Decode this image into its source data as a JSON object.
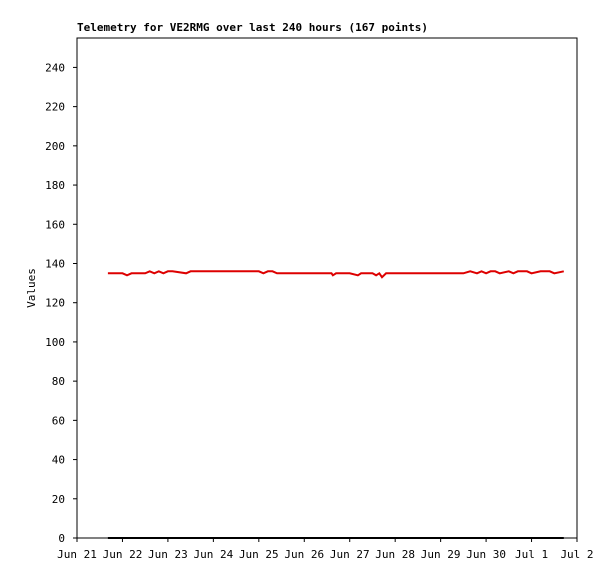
{
  "chart_data": {
    "type": "line",
    "title": "Telemetry for VE2RMG over last 240 hours (167 points)",
    "y_label": "Values",
    "xlim": [
      0,
      11
    ],
    "xticks": [
      {
        "value": 0,
        "label": "Jun 21"
      },
      {
        "value": 1,
        "label": "Jun 22"
      },
      {
        "value": 2,
        "label": "Jun 23"
      },
      {
        "value": 3,
        "label": "Jun 24"
      },
      {
        "value": 4,
        "label": "Jun 25"
      },
      {
        "value": 5,
        "label": "Jun 26"
      },
      {
        "value": 6,
        "label": "Jun 27"
      },
      {
        "value": 7,
        "label": "Jun 28"
      },
      {
        "value": 8,
        "label": "Jun 29"
      },
      {
        "value": 9,
        "label": "Jun 30"
      },
      {
        "value": 10,
        "label": "Jul 1"
      },
      {
        "value": 11,
        "label": "Jul 2"
      }
    ],
    "ylim": [
      0,
      255
    ],
    "yticks": [
      0,
      20,
      40,
      60,
      80,
      100,
      120,
      140,
      160,
      180,
      200,
      220,
      240
    ],
    "series": [
      {
        "color": "#dd0000",
        "x": [
          0.68,
          1.0,
          1.1,
          1.2,
          1.5,
          1.6,
          1.7,
          1.8,
          1.9,
          2.0,
          2.1,
          2.4,
          2.5,
          3.0,
          4.0,
          4.1,
          4.2,
          4.3,
          4.4,
          5.0,
          5.6,
          5.63,
          5.7,
          6.0,
          6.18,
          6.25,
          6.5,
          6.58,
          6.65,
          6.71,
          6.8,
          7.0,
          7.5,
          8.5,
          8.65,
          8.8,
          8.9,
          9.0,
          9.1,
          9.2,
          9.3,
          9.5,
          9.6,
          9.7,
          9.9,
          10.0,
          10.2,
          10.4,
          10.5,
          10.71
        ],
        "values": [
          135,
          135,
          134,
          135,
          135,
          136,
          135,
          136,
          135,
          136,
          136,
          135,
          136,
          136,
          136,
          135,
          136,
          136,
          135,
          135,
          135,
          134,
          135,
          135,
          134,
          135,
          135,
          134,
          135,
          133,
          135,
          135,
          135,
          135,
          136,
          135,
          136,
          135,
          136,
          136,
          135,
          136,
          135,
          136,
          136,
          135,
          136,
          136,
          135,
          136
        ]
      },
      {
        "color": "#000000",
        "x": [
          0.68,
          10.71
        ],
        "values": [
          0,
          0
        ]
      }
    ]
  }
}
